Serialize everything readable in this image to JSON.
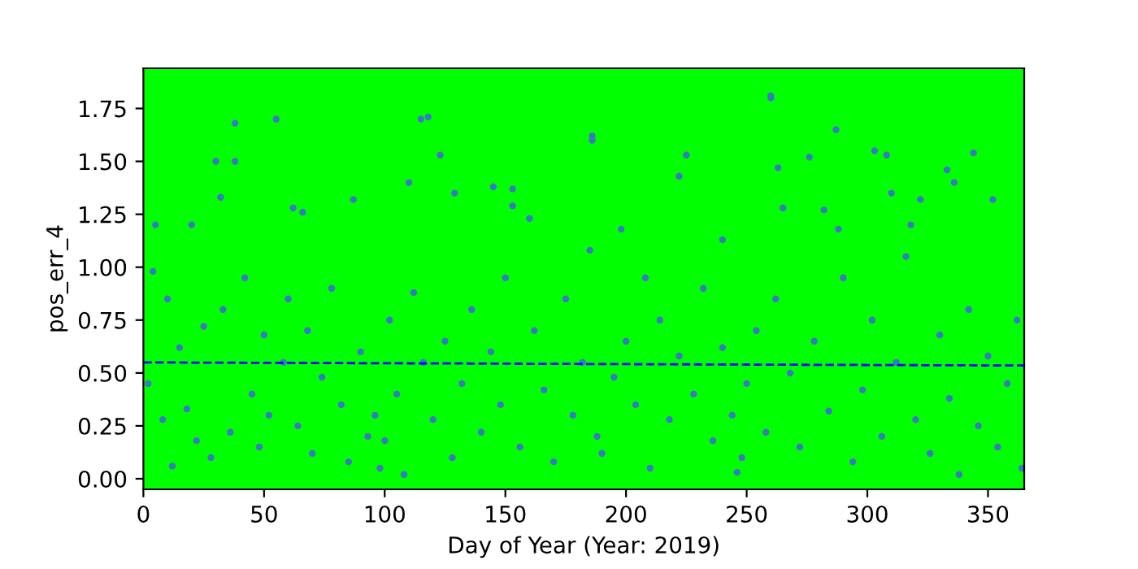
{
  "chart_data": {
    "type": "scatter",
    "xlabel": "Day of Year (Year: 2019)",
    "ylabel": "pos_err_4",
    "xlim": [
      0,
      365
    ],
    "ylim": [
      -0.05,
      1.94
    ],
    "xticks": [
      0,
      50,
      100,
      150,
      200,
      250,
      300,
      350
    ],
    "yticks": [
      {
        "value": 0,
        "label": "0.00"
      },
      {
        "value": 0.25,
        "label": "0.25"
      },
      {
        "value": 0.5,
        "label": "0.50"
      },
      {
        "value": 0.75,
        "label": "0.75"
      },
      {
        "value": 1,
        "label": "1.00"
      },
      {
        "value": 1.25,
        "label": "1.25"
      },
      {
        "value": 1.5,
        "label": "1.50"
      },
      {
        "value": 1.75,
        "label": "1.75"
      }
    ],
    "grid": false,
    "marker": "circle",
    "series": [
      {
        "color": "#3a78c0",
        "x": [
          38,
          55,
          115,
          118,
          123,
          186,
          186,
          260,
          260,
          287,
          303,
          308,
          333,
          344,
          352,
          30,
          32,
          38,
          20,
          5,
          62,
          66,
          87,
          110,
          129,
          145,
          153,
          153,
          160,
          198,
          222,
          225,
          263,
          265,
          276,
          282,
          288,
          318,
          322,
          336,
          310,
          240,
          2,
          4,
          8,
          10,
          12,
          15,
          18,
          22,
          25,
          28,
          33,
          36,
          42,
          45,
          48,
          50,
          52,
          58,
          60,
          64,
          68,
          70,
          74,
          78,
          82,
          85,
          90,
          93,
          96,
          98,
          100,
          102,
          105,
          108,
          112,
          116,
          120,
          125,
          128,
          132,
          136,
          140,
          144,
          148,
          150,
          156,
          162,
          166,
          170,
          175,
          178,
          182,
          185,
          188,
          190,
          195,
          200,
          204,
          208,
          210,
          214,
          218,
          222,
          228,
          232,
          236,
          240,
          244,
          246,
          248,
          250,
          254,
          258,
          262,
          268,
          272,
          278,
          284,
          290,
          294,
          298,
          302,
          306,
          312,
          316,
          320,
          326,
          330,
          334,
          338,
          342,
          346,
          350,
          354,
          358,
          362,
          364
        ],
        "values": [
          1.68,
          1.7,
          1.7,
          1.71,
          1.53,
          1.62,
          1.6,
          1.8,
          1.81,
          1.65,
          1.55,
          1.53,
          1.46,
          1.54,
          1.32,
          1.5,
          1.33,
          1.5,
          1.2,
          1.2,
          1.28,
          1.26,
          1.32,
          1.4,
          1.35,
          1.38,
          1.37,
          1.29,
          1.23,
          1.18,
          1.43,
          1.53,
          1.47,
          1.28,
          1.52,
          1.27,
          1.18,
          1.2,
          1.32,
          1.4,
          1.35,
          1.13,
          0.45,
          0.98,
          0.28,
          0.85,
          0.06,
          0.62,
          0.33,
          0.18,
          0.72,
          0.1,
          0.8,
          0.22,
          0.95,
          0.4,
          0.15,
          0.68,
          0.3,
          0.55,
          0.85,
          0.25,
          0.7,
          0.12,
          0.48,
          0.9,
          0.35,
          0.08,
          0.6,
          0.2,
          0.3,
          0.05,
          0.18,
          0.75,
          0.4,
          0.02,
          0.88,
          0.55,
          0.28,
          0.65,
          0.1,
          0.45,
          0.8,
          0.22,
          0.6,
          0.35,
          0.95,
          0.15,
          0.7,
          0.42,
          0.08,
          0.85,
          0.3,
          0.55,
          1.08,
          0.2,
          0.12,
          0.48,
          0.65,
          0.35,
          0.95,
          0.05,
          0.75,
          0.28,
          0.58,
          0.4,
          0.9,
          0.18,
          0.62,
          0.3,
          0.03,
          0.1,
          0.45,
          0.7,
          0.22,
          0.85,
          0.5,
          0.15,
          0.65,
          0.32,
          0.95,
          0.08,
          0.42,
          0.75,
          0.2,
          0.55,
          1.05,
          0.28,
          0.12,
          0.68,
          0.38,
          0.02,
          0.8,
          0.25,
          0.58,
          0.15,
          0.45,
          0.75,
          0.05
        ]
      },
      {
        "type": "line",
        "color": "#0000ff",
        "line_style": "dashed",
        "marker": "none",
        "x": [
          0,
          365
        ],
        "values": [
          0.55,
          0.535
        ]
      }
    ]
  }
}
